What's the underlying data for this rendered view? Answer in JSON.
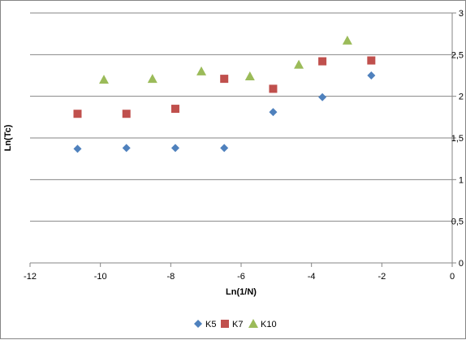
{
  "chart_data": {
    "type": "scatter",
    "title": "",
    "xlabel": "Ln(1/N)",
    "ylabel": "Ln(Tc)",
    "xlim": [
      -12,
      0
    ],
    "ylim": [
      0,
      3
    ],
    "xticks": [
      "-12",
      "-10",
      "-8",
      "-6",
      "-4",
      "-2",
      "0"
    ],
    "xtick_values": [
      -12,
      -10,
      -8,
      -6,
      -4,
      -2,
      0
    ],
    "yticks": [
      "0",
      "0,5",
      "1",
      "1,5",
      "2",
      "2,5",
      "3"
    ],
    "ytick_values": [
      0,
      0.5,
      1,
      1.5,
      2,
      2.5,
      3
    ],
    "grid": "horizontal",
    "legend": "bottom",
    "series": [
      {
        "name": "K5",
        "marker": "diamond",
        "color": "#4F81BD",
        "x": [
          -10.65,
          -9.26,
          -7.87,
          -6.48,
          -5.09,
          -3.69,
          -2.3
        ],
        "y": [
          1.37,
          1.38,
          1.38,
          1.38,
          1.81,
          1.99,
          2.25
        ]
      },
      {
        "name": "K7",
        "marker": "square",
        "color": "#C0504D",
        "x": [
          -10.65,
          -9.26,
          -7.87,
          -6.48,
          -5.09,
          -3.69,
          -2.3
        ],
        "y": [
          1.79,
          1.79,
          1.85,
          2.21,
          2.09,
          2.42,
          2.43
        ]
      },
      {
        "name": "K10",
        "marker": "triangle",
        "color": "#9BBB59",
        "x": [
          -9.9,
          -8.52,
          -7.13,
          -5.75,
          -4.36,
          -2.98
        ],
        "y": [
          2.2,
          2.21,
          2.3,
          2.24,
          2.38,
          2.67
        ]
      }
    ]
  }
}
